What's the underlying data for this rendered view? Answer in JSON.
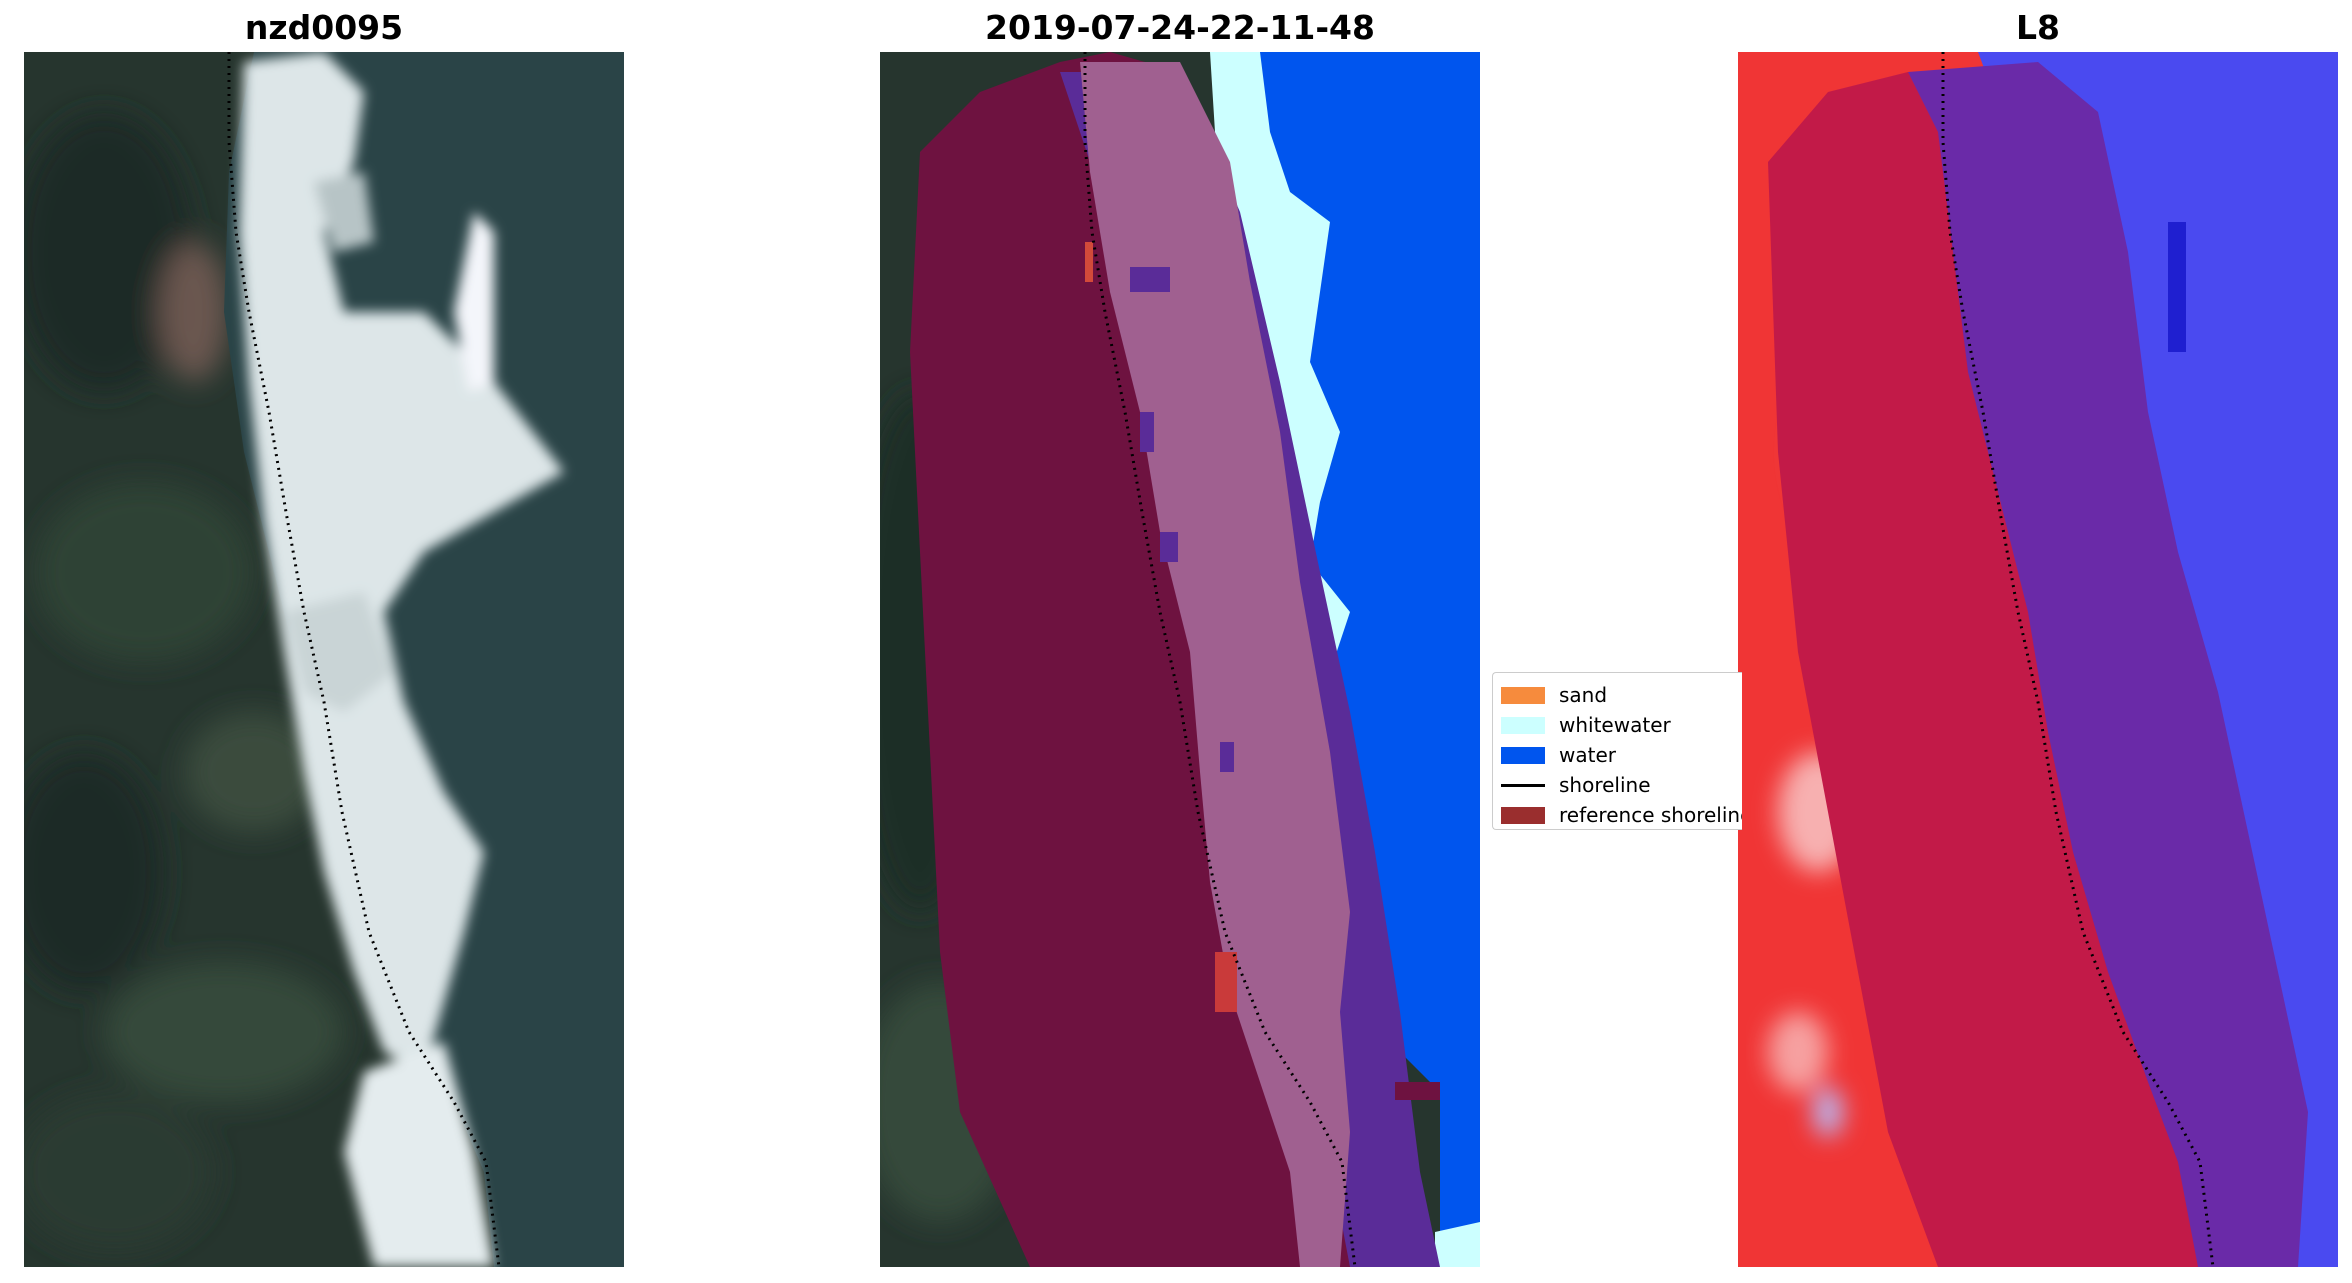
{
  "panels": [
    {
      "title": "nzd0095"
    },
    {
      "title": "2019-07-24-22-11-48"
    },
    {
      "title": "L8"
    }
  ],
  "legend": {
    "items": [
      {
        "label": "sand",
        "color": "#f68b3d",
        "kind": "patch"
      },
      {
        "label": "whitewater",
        "color": "#ccffff",
        "kind": "patch"
      },
      {
        "label": "water",
        "color": "#0055ee",
        "kind": "patch"
      },
      {
        "label": "shoreline",
        "color": "#000000",
        "kind": "line"
      },
      {
        "label": "reference shoreline",
        "color": "#9a2e2e",
        "kind": "patch"
      }
    ]
  },
  "colors": {
    "vegetation_dark": "#22332b",
    "whitewater_imagery": "#e6eef0",
    "ocean_imagery": "#2b4548",
    "reference_buffer": "#6e1240",
    "classified_beach": "#a06090",
    "classified_water_purple": "#5a2c98",
    "index_red": "#f03030",
    "index_blue": "#4a4af0"
  }
}
